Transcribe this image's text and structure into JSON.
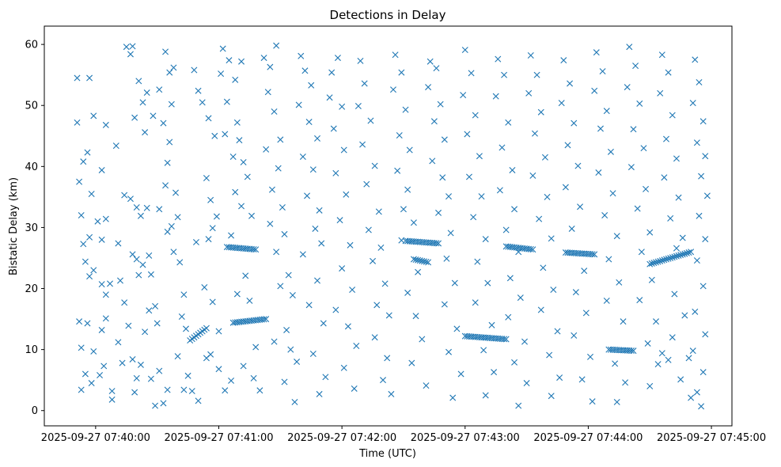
{
  "chart_data": {
    "type": "scatter",
    "title": "Detections in Delay",
    "xlabel": "Time (UTC)",
    "ylabel": "Bistatic Delay (km)",
    "marker": "x",
    "color": "#1f77b4",
    "grid": false,
    "legend": null,
    "x_unit": "seconds after 2025-09-27 07:40:00 UTC",
    "xlim": [
      -25,
      310
    ],
    "ylim": [
      -2.5,
      63
    ],
    "xticks": [
      0,
      60,
      120,
      180,
      240,
      300
    ],
    "xtick_labels": [
      "2025-09-27 07:40:00",
      "2025-09-27 07:41:00",
      "2025-09-27 07:42:00",
      "2025-09-27 07:43:00",
      "2025-09-27 07:44:00",
      "2025-09-27 07:45:00"
    ],
    "yticks": [
      0,
      10,
      20,
      30,
      40,
      50,
      60
    ],
    "ytick_labels": [
      "0",
      "10",
      "20",
      "30",
      "40",
      "50",
      "60"
    ],
    "tracks": [
      {
        "x_start": 46,
        "x_end": 54,
        "y_start": 11.5,
        "y_end": 13.5
      },
      {
        "x_start": 64,
        "x_end": 78,
        "y_start": 26.8,
        "y_end": 26.4
      },
      {
        "x_start": 67,
        "x_end": 83,
        "y_start": 14.4,
        "y_end": 15.0
      },
      {
        "x_start": 151,
        "x_end": 167,
        "y_start": 27.8,
        "y_end": 27.4
      },
      {
        "x_start": 155,
        "x_end": 162,
        "y_start": 24.8,
        "y_end": 24.3
      },
      {
        "x_start": 180,
        "x_end": 200,
        "y_start": 12.2,
        "y_end": 11.7
      },
      {
        "x_start": 200,
        "x_end": 213,
        "y_start": 26.9,
        "y_end": 26.4
      },
      {
        "x_start": 229,
        "x_end": 243,
        "y_start": 25.9,
        "y_end": 25.6
      },
      {
        "x_start": 250,
        "x_end": 262,
        "y_start": 10.0,
        "y_end": 9.8
      },
      {
        "x_start": 270,
        "x_end": 290,
        "y_start": 24.0,
        "y_end": 26.0
      }
    ],
    "points": [
      [
        -9,
        54.5
      ],
      [
        -3,
        54.5
      ],
      [
        -9,
        47.2
      ],
      [
        -1,
        48.3
      ],
      [
        5,
        46.8
      ],
      [
        -6,
        40.8
      ],
      [
        -4,
        42.3
      ],
      [
        3,
        39.4
      ],
      [
        -8,
        37.5
      ],
      [
        -2,
        35.5
      ],
      [
        -7,
        32.0
      ],
      [
        1,
        31.0
      ],
      [
        5,
        31.4
      ],
      [
        -3,
        28.4
      ],
      [
        3,
        28.0
      ],
      [
        -6,
        27.3
      ],
      [
        -5,
        24.4
      ],
      [
        -1,
        23.0
      ],
      [
        3,
        20.7
      ],
      [
        7,
        20.8
      ],
      [
        5,
        19.0
      ],
      [
        -3,
        22.0
      ],
      [
        -8,
        14.6
      ],
      [
        -4,
        14.3
      ],
      [
        3,
        13.2
      ],
      [
        5,
        15.1
      ],
      [
        -7,
        10.3
      ],
      [
        -1,
        9.7
      ],
      [
        4,
        7.3
      ],
      [
        -5,
        6.0
      ],
      [
        -2,
        4.5
      ],
      [
        2,
        5.8
      ],
      [
        8,
        3.2
      ],
      [
        8,
        1.8
      ],
      [
        -7,
        3.4
      ],
      [
        10,
        43.4
      ],
      [
        11,
        27.4
      ],
      [
        12,
        21.3
      ],
      [
        14,
        17.7
      ],
      [
        11,
        11.2
      ],
      [
        16,
        13.9
      ],
      [
        13,
        7.8
      ],
      [
        18,
        8.4
      ],
      [
        19,
        3.0
      ],
      [
        20,
        5.3
      ],
      [
        22,
        7.5
      ],
      [
        15,
        59.6
      ],
      [
        18,
        59.7
      ],
      [
        17,
        58.4
      ],
      [
        21,
        54.0
      ],
      [
        19,
        48.0
      ],
      [
        23,
        50.5
      ],
      [
        25,
        52.1
      ],
      [
        28,
        48.3
      ],
      [
        24,
        45.6
      ],
      [
        14,
        35.3
      ],
      [
        17,
        34.7
      ],
      [
        20,
        33.3
      ],
      [
        22,
        31.9
      ],
      [
        25,
        33.2
      ],
      [
        18,
        25.6
      ],
      [
        20,
        24.8
      ],
      [
        23,
        23.9
      ],
      [
        26,
        25.4
      ],
      [
        21,
        22.2
      ],
      [
        27,
        22.3
      ],
      [
        29,
        17.1
      ],
      [
        26,
        16.4
      ],
      [
        30,
        14.3
      ],
      [
        24,
        12.9
      ],
      [
        27,
        5.2
      ],
      [
        31,
        6.5
      ],
      [
        29,
        0.8
      ],
      [
        33,
        1.2
      ],
      [
        35,
        3.4
      ],
      [
        34,
        58.8
      ],
      [
        36,
        55.4
      ],
      [
        38,
        56.2
      ],
      [
        31,
        52.6
      ],
      [
        37,
        50.2
      ],
      [
        33,
        47.1
      ],
      [
        36,
        44.0
      ],
      [
        35,
        40.6
      ],
      [
        34,
        36.9
      ],
      [
        39,
        35.7
      ],
      [
        31,
        33.0
      ],
      [
        37,
        30.2
      ],
      [
        35,
        29.3
      ],
      [
        40,
        31.7
      ],
      [
        38,
        26.0
      ],
      [
        41,
        24.3
      ],
      [
        43,
        19.0
      ],
      [
        42,
        15.4
      ],
      [
        44,
        13.4
      ],
      [
        40,
        8.9
      ],
      [
        45,
        5.7
      ],
      [
        43,
        3.4
      ],
      [
        47,
        3.2
      ],
      [
        50,
        1.6
      ],
      [
        48,
        55.8
      ],
      [
        50,
        52.4
      ],
      [
        52,
        50.5
      ],
      [
        55,
        47.9
      ],
      [
        58,
        45.0
      ],
      [
        54,
        38.1
      ],
      [
        56,
        34.5
      ],
      [
        59,
        31.8
      ],
      [
        57,
        29.9
      ],
      [
        55,
        28.1
      ],
      [
        49,
        27.6
      ],
      [
        53,
        20.2
      ],
      [
        57,
        17.8
      ],
      [
        60,
        13.0
      ],
      [
        56,
        9.2
      ],
      [
        54,
        8.6
      ],
      [
        60,
        6.8
      ],
      [
        63,
        3.3
      ],
      [
        66,
        4.9
      ],
      [
        62,
        59.3
      ],
      [
        65,
        57.4
      ],
      [
        61,
        55.2
      ],
      [
        68,
        54.2
      ],
      [
        71,
        57.2
      ],
      [
        64,
        50.6
      ],
      [
        69,
        47.2
      ],
      [
        63,
        45.3
      ],
      [
        70,
        44.3
      ],
      [
        67,
        41.6
      ],
      [
        72,
        40.7
      ],
      [
        74,
        38.3
      ],
      [
        68,
        35.8
      ],
      [
        71,
        33.5
      ],
      [
        76,
        31.9
      ],
      [
        66,
        28.7
      ],
      [
        73,
        22.1
      ],
      [
        69,
        19.1
      ],
      [
        75,
        18.0
      ],
      [
        78,
        10.4
      ],
      [
        72,
        7.3
      ],
      [
        77,
        5.3
      ],
      [
        80,
        3.3
      ],
      [
        82,
        57.8
      ],
      [
        85,
        56.3
      ],
      [
        88,
        59.8
      ],
      [
        84,
        52.2
      ],
      [
        87,
        49.0
      ],
      [
        90,
        44.4
      ],
      [
        83,
        42.8
      ],
      [
        89,
        39.7
      ],
      [
        86,
        36.2
      ],
      [
        91,
        33.3
      ],
      [
        85,
        30.6
      ],
      [
        92,
        28.9
      ],
      [
        88,
        26.0
      ],
      [
        94,
        22.2
      ],
      [
        90,
        20.4
      ],
      [
        96,
        18.9
      ],
      [
        93,
        13.2
      ],
      [
        87,
        11.3
      ],
      [
        95,
        10.0
      ],
      [
        98,
        8.0
      ],
      [
        92,
        4.7
      ],
      [
        97,
        1.4
      ],
      [
        100,
        58.1
      ],
      [
        102,
        55.7
      ],
      [
        105,
        53.3
      ],
      [
        99,
        50.1
      ],
      [
        104,
        47.3
      ],
      [
        108,
        44.6
      ],
      [
        101,
        41.6
      ],
      [
        106,
        39.5
      ],
      [
        103,
        35.2
      ],
      [
        109,
        32.8
      ],
      [
        107,
        29.8
      ],
      [
        110,
        27.4
      ],
      [
        101,
        25.6
      ],
      [
        108,
        21.3
      ],
      [
        104,
        17.3
      ],
      [
        111,
        14.3
      ],
      [
        106,
        9.3
      ],
      [
        112,
        5.5
      ],
      [
        109,
        2.7
      ],
      [
        115,
        55.4
      ],
      [
        118,
        57.8
      ],
      [
        114,
        51.3
      ],
      [
        120,
        49.8
      ],
      [
        116,
        46.2
      ],
      [
        121,
        42.7
      ],
      [
        117,
        38.9
      ],
      [
        122,
        35.4
      ],
      [
        119,
        31.2
      ],
      [
        124,
        27.1
      ],
      [
        120,
        23.3
      ],
      [
        125,
        19.8
      ],
      [
        117,
        16.5
      ],
      [
        123,
        13.8
      ],
      [
        127,
        10.6
      ],
      [
        121,
        7.0
      ],
      [
        126,
        3.6
      ],
      [
        129,
        57.3
      ],
      [
        131,
        53.6
      ],
      [
        128,
        49.9
      ],
      [
        134,
        47.5
      ],
      [
        130,
        43.6
      ],
      [
        136,
        40.1
      ],
      [
        132,
        37.1
      ],
      [
        138,
        32.6
      ],
      [
        133,
        29.6
      ],
      [
        139,
        26.7
      ],
      [
        135,
        24.5
      ],
      [
        141,
        20.8
      ],
      [
        137,
        17.3
      ],
      [
        143,
        15.6
      ],
      [
        136,
        12.0
      ],
      [
        142,
        8.6
      ],
      [
        140,
        5.0
      ],
      [
        144,
        2.7
      ],
      [
        146,
        58.3
      ],
      [
        149,
        55.4
      ],
      [
        145,
        52.6
      ],
      [
        151,
        49.3
      ],
      [
        148,
        45.1
      ],
      [
        153,
        42.7
      ],
      [
        147,
        39.3
      ],
      [
        152,
        36.2
      ],
      [
        150,
        33.0
      ],
      [
        155,
        30.8
      ],
      [
        149,
        27.9
      ],
      [
        157,
        22.7
      ],
      [
        152,
        19.3
      ],
      [
        156,
        15.5
      ],
      [
        159,
        11.7
      ],
      [
        154,
        7.8
      ],
      [
        161,
        4.1
      ],
      [
        163,
        57.2
      ],
      [
        166,
        56.1
      ],
      [
        162,
        53.0
      ],
      [
        168,
        50.2
      ],
      [
        165,
        47.4
      ],
      [
        170,
        44.4
      ],
      [
        164,
        40.9
      ],
      [
        169,
        38.2
      ],
      [
        172,
        35.1
      ],
      [
        167,
        32.4
      ],
      [
        173,
        29.1
      ],
      [
        171,
        24.9
      ],
      [
        175,
        20.9
      ],
      [
        170,
        17.4
      ],
      [
        176,
        13.4
      ],
      [
        172,
        9.6
      ],
      [
        178,
        6.0
      ],
      [
        174,
        2.1
      ],
      [
        180,
        59.1
      ],
      [
        183,
        55.3
      ],
      [
        179,
        51.7
      ],
      [
        185,
        48.4
      ],
      [
        181,
        45.3
      ],
      [
        187,
        41.7
      ],
      [
        182,
        38.3
      ],
      [
        188,
        35.1
      ],
      [
        184,
        31.7
      ],
      [
        190,
        28.1
      ],
      [
        186,
        24.4
      ],
      [
        191,
        20.9
      ],
      [
        185,
        17.7
      ],
      [
        193,
        14.0
      ],
      [
        189,
        9.9
      ],
      [
        194,
        6.3
      ],
      [
        190,
        2.5
      ],
      [
        196,
        57.6
      ],
      [
        199,
        55.0
      ],
      [
        195,
        51.5
      ],
      [
        201,
        47.2
      ],
      [
        198,
        43.1
      ],
      [
        203,
        39.4
      ],
      [
        197,
        36.1
      ],
      [
        204,
        33.0
      ],
      [
        200,
        29.6
      ],
      [
        206,
        26.0
      ],
      [
        202,
        21.7
      ],
      [
        207,
        18.5
      ],
      [
        201,
        15.3
      ],
      [
        209,
        11.3
      ],
      [
        204,
        7.9
      ],
      [
        210,
        4.5
      ],
      [
        206,
        0.8
      ],
      [
        212,
        58.2
      ],
      [
        215,
        55.0
      ],
      [
        211,
        52.0
      ],
      [
        217,
        48.9
      ],
      [
        214,
        45.4
      ],
      [
        219,
        41.5
      ],
      [
        213,
        38.5
      ],
      [
        220,
        35.0
      ],
      [
        216,
        31.4
      ],
      [
        222,
        28.2
      ],
      [
        218,
        23.4
      ],
      [
        223,
        19.8
      ],
      [
        217,
        16.5
      ],
      [
        225,
        13.0
      ],
      [
        221,
        9.1
      ],
      [
        226,
        5.4
      ],
      [
        222,
        2.4
      ],
      [
        228,
        57.4
      ],
      [
        231,
        53.6
      ],
      [
        227,
        50.4
      ],
      [
        233,
        47.1
      ],
      [
        230,
        43.5
      ],
      [
        235,
        40.1
      ],
      [
        229,
        36.6
      ],
      [
        236,
        33.4
      ],
      [
        232,
        29.8
      ],
      [
        238,
        22.9
      ],
      [
        234,
        19.4
      ],
      [
        239,
        16.0
      ],
      [
        233,
        12.3
      ],
      [
        241,
        8.8
      ],
      [
        237,
        5.1
      ],
      [
        242,
        1.5
      ],
      [
        244,
        58.7
      ],
      [
        247,
        55.6
      ],
      [
        243,
        52.4
      ],
      [
        249,
        49.1
      ],
      [
        246,
        46.2
      ],
      [
        251,
        42.4
      ],
      [
        245,
        39.0
      ],
      [
        252,
        35.6
      ],
      [
        248,
        32.0
      ],
      [
        254,
        28.6
      ],
      [
        250,
        24.8
      ],
      [
        255,
        21.0
      ],
      [
        249,
        18.0
      ],
      [
        257,
        14.6
      ],
      [
        253,
        7.7
      ],
      [
        258,
        4.6
      ],
      [
        254,
        1.4
      ],
      [
        260,
        59.6
      ],
      [
        263,
        56.5
      ],
      [
        259,
        53.0
      ],
      [
        265,
        50.3
      ],
      [
        262,
        46.1
      ],
      [
        267,
        43.0
      ],
      [
        261,
        39.9
      ],
      [
        268,
        36.3
      ],
      [
        264,
        33.1
      ],
      [
        270,
        29.2
      ],
      [
        266,
        26.0
      ],
      [
        271,
        21.4
      ],
      [
        265,
        18.1
      ],
      [
        273,
        14.6
      ],
      [
        269,
        11.0
      ],
      [
        274,
        7.6
      ],
      [
        270,
        4.0
      ],
      [
        276,
        58.3
      ],
      [
        279,
        55.4
      ],
      [
        275,
        52.0
      ],
      [
        281,
        48.4
      ],
      [
        278,
        44.5
      ],
      [
        283,
        41.3
      ],
      [
        277,
        38.2
      ],
      [
        284,
        34.9
      ],
      [
        280,
        31.5
      ],
      [
        286,
        28.3
      ],
      [
        282,
        19.1
      ],
      [
        287,
        15.6
      ],
      [
        281,
        12.0
      ],
      [
        289,
        8.6
      ],
      [
        285,
        5.1
      ],
      [
        290,
        2.1
      ],
      [
        292,
        57.5
      ],
      [
        294,
        53.8
      ],
      [
        291,
        50.4
      ],
      [
        296,
        47.4
      ],
      [
        293,
        43.9
      ],
      [
        297,
        41.7
      ],
      [
        295,
        38.4
      ],
      [
        298,
        35.2
      ],
      [
        294,
        31.9
      ],
      [
        297,
        28.1
      ],
      [
        293,
        24.6
      ],
      [
        296,
        20.4
      ],
      [
        292,
        16.2
      ],
      [
        297,
        12.5
      ],
      [
        291,
        9.8
      ],
      [
        296,
        6.3
      ],
      [
        293,
        3.0
      ],
      [
        295,
        0.7
      ],
      [
        279,
        8.3
      ],
      [
        276,
        9.4
      ],
      [
        283,
        26.6
      ]
    ]
  }
}
